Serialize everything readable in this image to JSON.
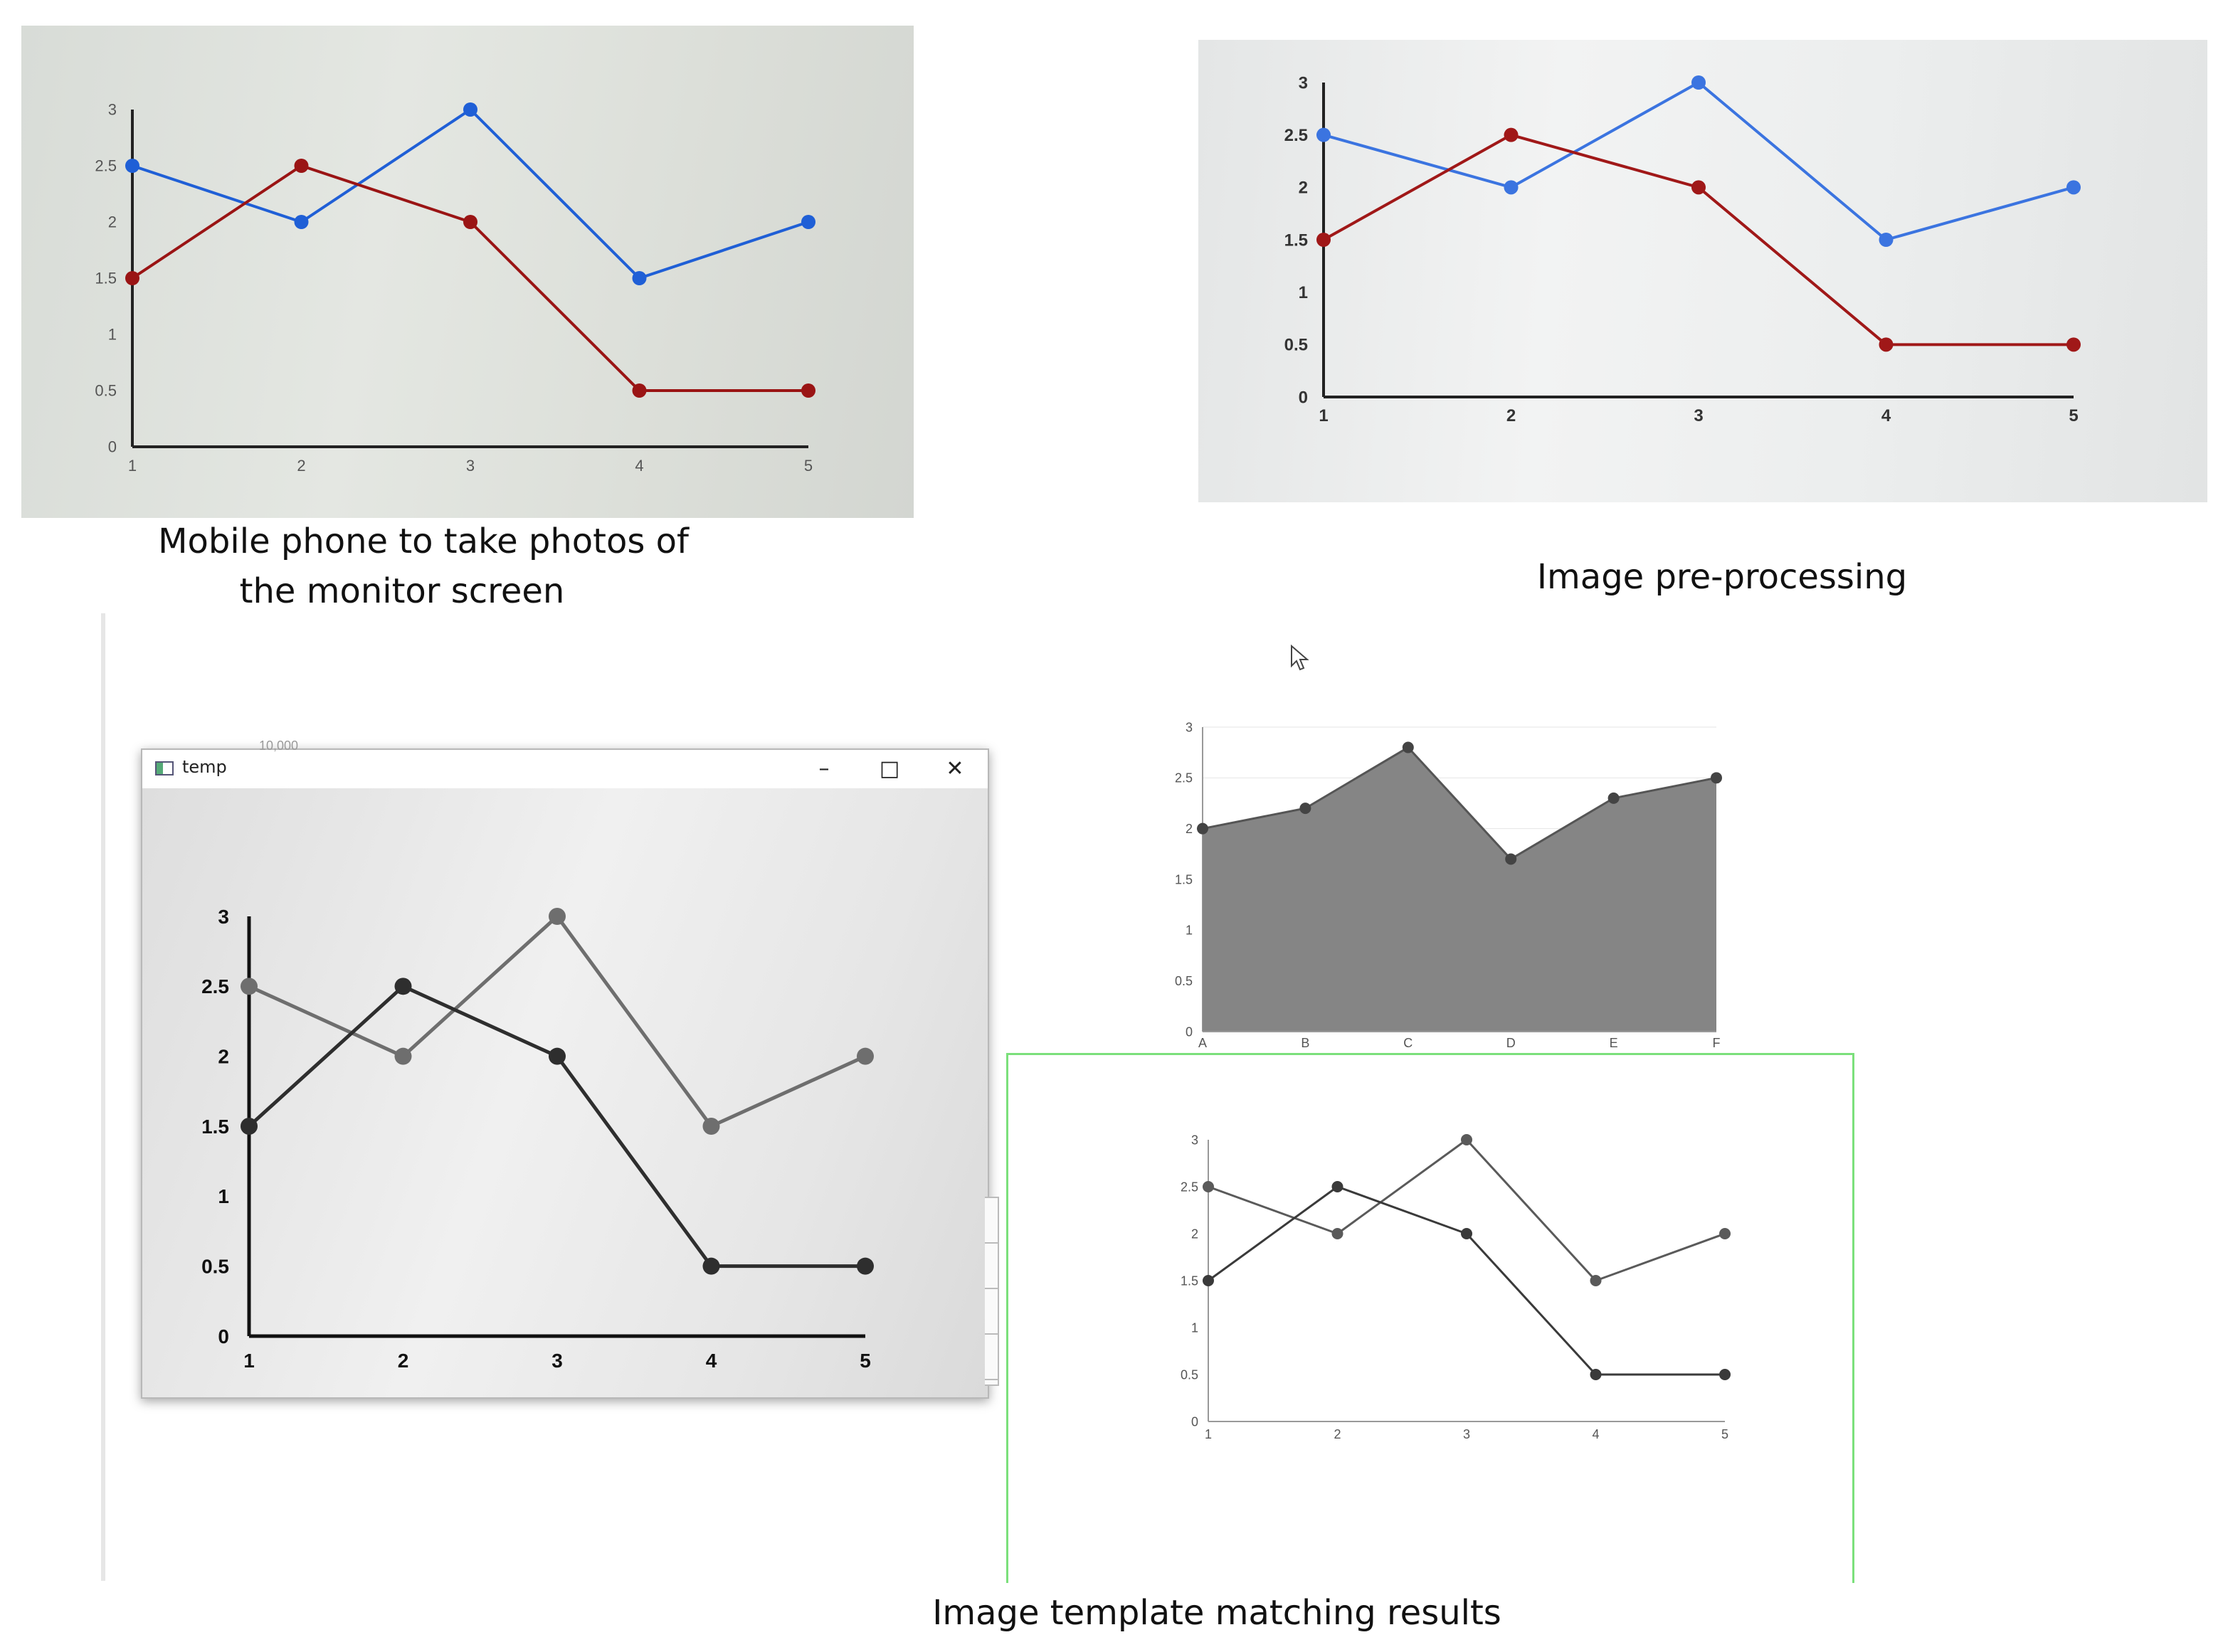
{
  "captions": {
    "photo": "Mobile phone to take photos of\nthe monitor screen",
    "photo_line1": "Mobile phone to take photos of",
    "photo_line2": "the monitor screen",
    "preprocessing": "Image pre-processing",
    "matching": "Image template matching results"
  },
  "window": {
    "title": "temp",
    "minimize_glyph": "–",
    "maximize_glyph": "□",
    "close_glyph": "✕",
    "background_tick": "10,000"
  },
  "colors": {
    "blue_series": "#1f5fd6",
    "red_series": "#9a1414",
    "gray_dark": "#3c3c3c",
    "gray_light": "#6e6e6e",
    "area_fill": "#858585",
    "match_frame": "#7be07b"
  },
  "icons": {
    "cursor": "mouse-pointer-icon",
    "window_icon": "app-window-icon"
  },
  "chart_data": [
    {
      "type": "line",
      "panel": "phone-photo",
      "x": [
        1,
        2,
        3,
        4,
        5
      ],
      "ylim": [
        0,
        3
      ],
      "yticks": [
        "0",
        "0.5",
        "1",
        "1.5",
        "2",
        "2.5",
        "3"
      ],
      "xticks": [
        "1",
        "2",
        "3",
        "4",
        "5"
      ],
      "series": [
        {
          "values": [
            2.5,
            2,
            3,
            1.5,
            2
          ],
          "color": "#1f5fd6"
        },
        {
          "values": [
            1.5,
            2.5,
            2,
            0.5,
            0.5
          ],
          "color": "#9a1414"
        }
      ]
    },
    {
      "type": "line",
      "panel": "pre-processed",
      "x": [
        1,
        2,
        3,
        4,
        5
      ],
      "ylim": [
        0,
        3
      ],
      "yticks": [
        "0",
        "0.5",
        "1",
        "1.5",
        "2",
        "2.5",
        "3"
      ],
      "xticks": [
        "1",
        "2",
        "3",
        "4",
        "5"
      ],
      "series": [
        {
          "values": [
            2.5,
            2,
            3,
            1.5,
            2
          ],
          "color": "#3b74e0"
        },
        {
          "values": [
            1.5,
            2.5,
            2,
            0.5,
            0.5
          ],
          "color": "#a01818"
        }
      ]
    },
    {
      "type": "line",
      "panel": "grayscale-window",
      "x": [
        1,
        2,
        3,
        4,
        5
      ],
      "ylim": [
        0,
        3
      ],
      "yticks": [
        "0",
        "0.5",
        "1",
        "1.5",
        "2",
        "2.5",
        "3"
      ],
      "xticks": [
        "1",
        "2",
        "3",
        "4",
        "5"
      ],
      "series": [
        {
          "values": [
            2.5,
            2,
            3,
            1.5,
            2
          ],
          "color": "#6e6e6e"
        },
        {
          "values": [
            1.5,
            2.5,
            2,
            0.5,
            0.5
          ],
          "color": "#2e2e2e"
        }
      ]
    },
    {
      "type": "area",
      "panel": "template-area",
      "categories": [
        "A",
        "B",
        "C",
        "D",
        "E",
        "F"
      ],
      "values": [
        2.0,
        2.2,
        2.8,
        1.7,
        2.3,
        2.5
      ],
      "ylim": [
        0,
        3
      ],
      "yticks": [
        "0",
        "0.5",
        "1",
        "1.5",
        "2",
        "2.5",
        "3"
      ],
      "color": "#858585"
    },
    {
      "type": "line",
      "panel": "template-line",
      "x": [
        1,
        2,
        3,
        4,
        5
      ],
      "ylim": [
        0,
        3
      ],
      "yticks": [
        "0",
        "0.5",
        "1",
        "1.5",
        "2",
        "2.5",
        "3"
      ],
      "xticks": [
        "1",
        "2",
        "3",
        "4",
        "5"
      ],
      "series": [
        {
          "values": [
            2.5,
            2,
            3,
            1.5,
            2
          ],
          "color": "#5a5a5a"
        },
        {
          "values": [
            1.5,
            2.5,
            2,
            0.5,
            0.5
          ],
          "color": "#3a3a3a"
        }
      ]
    }
  ]
}
